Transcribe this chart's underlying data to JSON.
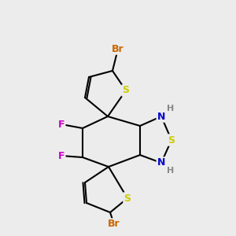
{
  "bg_color": "#ececec",
  "bond_color": "#000000",
  "bond_width": 1.5,
  "atom_colors": {
    "S": "#cccc00",
    "N": "#0000cc",
    "F": "#cc00cc",
    "Br": "#cc6600",
    "C": "#000000",
    "H": "#888888"
  },
  "font_size": 9,
  "label_font_size": 9
}
